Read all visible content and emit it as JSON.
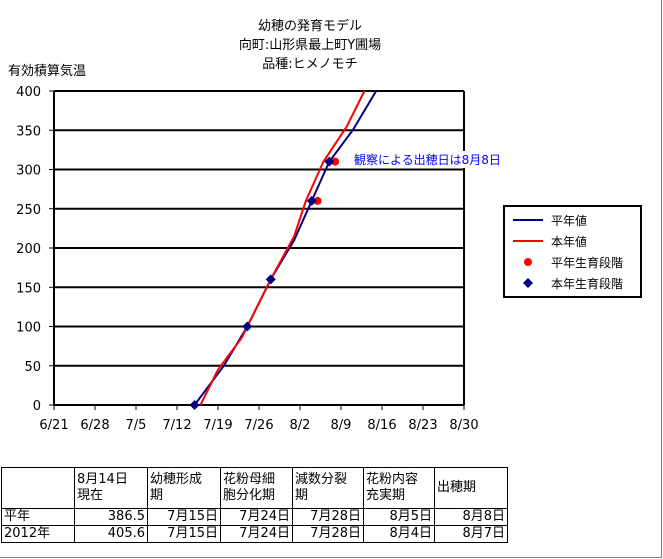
{
  "chart_data": {
    "type": "line",
    "title": [
      "幼穂の発育モデル",
      "向町:山形県最上町Y圃場",
      "品種:ヒメノモチ"
    ],
    "ylabel": "有効積算気温",
    "ylim": [
      0,
      400
    ],
    "yticks": [
      "0",
      "50",
      "100",
      "150",
      "200",
      "250",
      "300",
      "350",
      "400"
    ],
    "xticks": [
      "6/21",
      "6/28",
      "7/5",
      "7/12",
      "7/19",
      "7/26",
      "8/2",
      "8/9",
      "8/16",
      "8/23",
      "8/30"
    ],
    "grid": "horizontal",
    "legend_position": "right",
    "annotation": "観察による出穂日は8月8日",
    "series": [
      {
        "name": "平年値",
        "kind": "line",
        "color": "#000080",
        "points": [
          [
            "7/15",
            0
          ],
          [
            "7/20",
            50
          ],
          [
            "7/24",
            100
          ],
          [
            "7/28",
            160
          ],
          [
            "8/1",
            210
          ],
          [
            "8/4",
            260
          ],
          [
            "8/7",
            310
          ],
          [
            "8/11",
            350
          ],
          [
            "8/15",
            400
          ]
        ]
      },
      {
        "name": "本年値",
        "kind": "line",
        "color": "#ff0000",
        "points": [
          [
            "7/16",
            0
          ],
          [
            "7/19",
            45
          ],
          [
            "7/23",
            85
          ],
          [
            "7/28",
            160
          ],
          [
            "8/1",
            215
          ],
          [
            "8/3",
            260
          ],
          [
            "8/6",
            310
          ],
          [
            "8/10",
            355
          ],
          [
            "8/13",
            400
          ]
        ]
      },
      {
        "name": "平年生育段階",
        "kind": "marker",
        "shape": "circle",
        "color": "#ff0000",
        "points": [
          [
            "8/5",
            260
          ],
          [
            "8/8",
            310
          ]
        ]
      },
      {
        "name": "本年生育段階",
        "kind": "marker",
        "shape": "diamond",
        "color": "#000080",
        "points": [
          [
            "7/15",
            0
          ],
          [
            "7/24",
            100
          ],
          [
            "7/28",
            160
          ],
          [
            "8/4",
            260
          ],
          [
            "8/7",
            310
          ]
        ]
      }
    ]
  },
  "table": {
    "headers": [
      "",
      "8月14日\n現在",
      "幼穂形成\n期",
      "花粉母細\n胞分化期",
      "減数分裂\n期",
      "花粉内容\n充実期",
      "出穂期"
    ],
    "rows": [
      [
        "平年",
        "386.5",
        "7月15日",
        "7月24日",
        "7月28日",
        "8月5日",
        "8月8日"
      ],
      [
        "2012年",
        "405.6",
        "7月15日",
        "7月24日",
        "7月28日",
        "8月4日",
        "8月7日"
      ]
    ]
  }
}
